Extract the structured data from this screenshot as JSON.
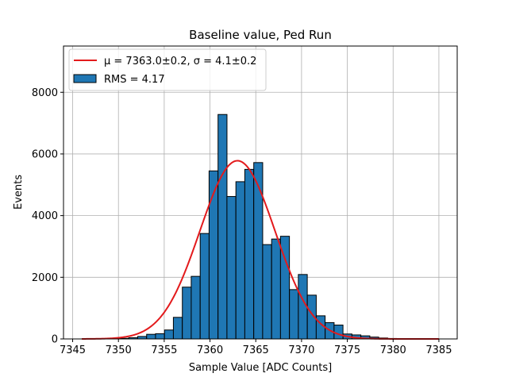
{
  "chart_data": {
    "type": "bar",
    "title": "Baseline value, Ped Run",
    "xlabel": "Sample Value [ADC Counts]",
    "ylabel": "Events",
    "xlim": [
      7344.0,
      7387.0
    ],
    "ylim": [
      0,
      9500
    ],
    "xticks": [
      7345,
      7350,
      7355,
      7360,
      7365,
      7370,
      7375,
      7380,
      7385
    ],
    "yticks": [
      0,
      2000,
      4000,
      6000,
      8000
    ],
    "grid": true,
    "legend_position": "top-left",
    "histogram": {
      "label": "RMS = 4.17",
      "bin_width": 0.975,
      "bins": [
        {
          "start": 7349.18,
          "count": 10
        },
        {
          "start": 7350.15,
          "count": 20
        },
        {
          "start": 7351.13,
          "count": 40
        },
        {
          "start": 7352.1,
          "count": 80
        },
        {
          "start": 7353.08,
          "count": 150
        },
        {
          "start": 7354.05,
          "count": 170
        },
        {
          "start": 7355.03,
          "count": 290
        },
        {
          "start": 7356.0,
          "count": 700
        },
        {
          "start": 7356.98,
          "count": 1680
        },
        {
          "start": 7357.95,
          "count": 2030
        },
        {
          "start": 7358.93,
          "count": 3420
        },
        {
          "start": 7359.9,
          "count": 5450
        },
        {
          "start": 7360.88,
          "count": 7280
        },
        {
          "start": 7361.85,
          "count": 4620
        },
        {
          "start": 7362.83,
          "count": 5100
        },
        {
          "start": 7363.8,
          "count": 5500
        },
        {
          "start": 7364.78,
          "count": 5720
        },
        {
          "start": 7365.75,
          "count": 3060
        },
        {
          "start": 7366.73,
          "count": 3240
        },
        {
          "start": 7367.7,
          "count": 3330
        },
        {
          "start": 7368.68,
          "count": 1600
        },
        {
          "start": 7369.65,
          "count": 2090
        },
        {
          "start": 7370.63,
          "count": 1420
        },
        {
          "start": 7371.6,
          "count": 750
        },
        {
          "start": 7372.58,
          "count": 530
        },
        {
          "start": 7373.55,
          "count": 450
        },
        {
          "start": 7374.53,
          "count": 160
        },
        {
          "start": 7375.5,
          "count": 130
        },
        {
          "start": 7376.48,
          "count": 100
        },
        {
          "start": 7377.45,
          "count": 60
        },
        {
          "start": 7378.43,
          "count": 30
        },
        {
          "start": 7379.4,
          "count": 15
        }
      ]
    },
    "fit": {
      "label": "μ = 7363.0±0.2, σ = 4.1±0.2",
      "mu": 7363.0,
      "sigma": 4.1,
      "amplitude": 5780,
      "x_range": [
        7346,
        7385
      ]
    }
  },
  "colors": {
    "bar_fill": "#1f77b4",
    "bar_edge": "#000000",
    "fit_line": "#e31a1c",
    "grid": "#b0b0b0",
    "axes": "#000000"
  }
}
